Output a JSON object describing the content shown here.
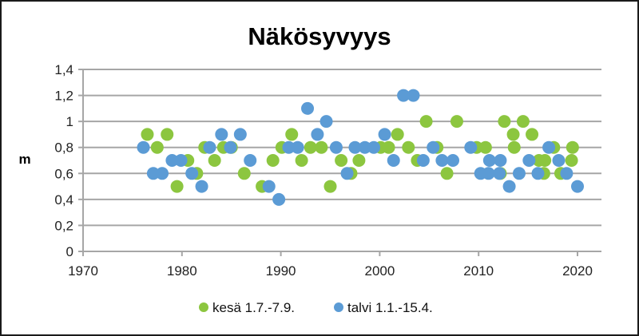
{
  "chart_data": {
    "type": "scatter",
    "title": "Näkösyvyys",
    "xlabel": "",
    "ylabel": "m",
    "xlim": [
      1970,
      2022
    ],
    "ylim": [
      0,
      1.4
    ],
    "x_ticks": [
      1970,
      1980,
      1990,
      2000,
      2010,
      2020
    ],
    "y_ticks": [
      "0",
      "0,2",
      "0,4",
      "0,6",
      "0,8",
      "1",
      "1,2",
      "1,4"
    ],
    "y_tick_values": [
      0,
      0.2,
      0.4,
      0.6,
      0.8,
      1.0,
      1.2,
      1.4
    ],
    "grid": "horizontal",
    "legend_position": "bottom",
    "series": [
      {
        "name": "kesä 1.7.-7.9.",
        "color": "#8cc63f",
        "points": [
          [
            1976.5,
            0.9
          ],
          [
            1977.5,
            0.8
          ],
          [
            1978.5,
            0.9
          ],
          [
            1979.5,
            0.5
          ],
          [
            1980.6,
            0.7
          ],
          [
            1981.5,
            0.6
          ],
          [
            1982.3,
            0.8
          ],
          [
            1983.3,
            0.7
          ],
          [
            1984.2,
            0.8
          ],
          [
            1985.0,
            0.8
          ],
          [
            1986.3,
            0.6
          ],
          [
            1988.1,
            0.5
          ],
          [
            1989.2,
            0.7
          ],
          [
            1990.1,
            0.8
          ],
          [
            1991.1,
            0.9
          ],
          [
            1992.1,
            0.7
          ],
          [
            1993.0,
            0.8
          ],
          [
            1994.1,
            0.8
          ],
          [
            1995.0,
            0.5
          ],
          [
            1996.1,
            0.7
          ],
          [
            1997.1,
            0.6
          ],
          [
            1997.9,
            0.7
          ],
          [
            2000.1,
            0.8
          ],
          [
            2000.9,
            0.8
          ],
          [
            2001.8,
            0.9
          ],
          [
            2002.9,
            0.8
          ],
          [
            2003.8,
            0.7
          ],
          [
            2004.7,
            1.0
          ],
          [
            2005.8,
            0.8
          ],
          [
            2006.8,
            0.6
          ],
          [
            2007.8,
            1.0
          ],
          [
            2009.8,
            0.8
          ],
          [
            2010.7,
            0.8
          ],
          [
            2012.2,
            0.6
          ],
          [
            2012.6,
            1.0
          ],
          [
            2013.5,
            0.9
          ],
          [
            2013.6,
            0.8
          ],
          [
            2014.5,
            1.0
          ],
          [
            2015.4,
            0.9
          ],
          [
            2016.1,
            0.7
          ],
          [
            2016.6,
            0.6
          ],
          [
            2016.7,
            0.7
          ],
          [
            2017.6,
            0.8
          ],
          [
            2018.3,
            0.6
          ],
          [
            2019.4,
            0.7
          ],
          [
            2019.5,
            0.8
          ]
        ]
      },
      {
        "name": "talvi 1.1.-15.4.",
        "color": "#5b9bd5",
        "points": [
          [
            1976.1,
            0.8
          ],
          [
            1977.1,
            0.6
          ],
          [
            1978.0,
            0.6
          ],
          [
            1979.0,
            0.7
          ],
          [
            1979.9,
            0.7
          ],
          [
            1981.0,
            0.6
          ],
          [
            1982.0,
            0.5
          ],
          [
            1982.8,
            0.8
          ],
          [
            1984.0,
            0.9
          ],
          [
            1984.9,
            0.8
          ],
          [
            1985.9,
            0.9
          ],
          [
            1986.9,
            0.7
          ],
          [
            1988.8,
            0.5
          ],
          [
            1989.8,
            0.4
          ],
          [
            1990.8,
            0.8
          ],
          [
            1991.7,
            0.8
          ],
          [
            1992.7,
            1.1
          ],
          [
            1993.7,
            0.9
          ],
          [
            1994.6,
            1.0
          ],
          [
            1995.6,
            0.8
          ],
          [
            1996.7,
            0.6
          ],
          [
            1997.5,
            0.8
          ],
          [
            1998.5,
            0.8
          ],
          [
            1999.4,
            0.8
          ],
          [
            2000.5,
            0.9
          ],
          [
            2001.4,
            0.7
          ],
          [
            2002.4,
            1.2
          ],
          [
            2003.4,
            1.2
          ],
          [
            2004.4,
            0.7
          ],
          [
            2005.4,
            0.8
          ],
          [
            2006.3,
            0.7
          ],
          [
            2007.4,
            0.7
          ],
          [
            2009.2,
            0.8
          ],
          [
            2010.2,
            0.6
          ],
          [
            2011.0,
            0.6
          ],
          [
            2011.1,
            0.7
          ],
          [
            2012.1,
            0.6
          ],
          [
            2012.2,
            0.7
          ],
          [
            2013.1,
            0.5
          ],
          [
            2014.1,
            0.6
          ],
          [
            2015.1,
            0.7
          ],
          [
            2016.0,
            0.6
          ],
          [
            2017.1,
            0.8
          ],
          [
            2018.1,
            0.7
          ],
          [
            2018.9,
            0.6
          ],
          [
            2020.0,
            0.5
          ]
        ]
      }
    ]
  }
}
